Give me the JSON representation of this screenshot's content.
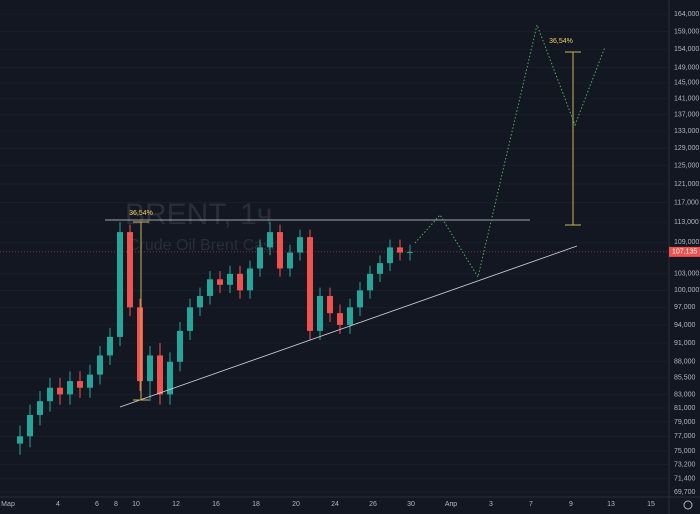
{
  "chart_data": {
    "type": "candlestick",
    "watermark_title": "BRENT, 1ч",
    "watermark_subtitle": "Crude Oil Brent Cash",
    "last_price_label": "107,135",
    "measure_label_left": "36,54%",
    "measure_label_right": "36,54%",
    "x_axis_labels": [
      "Мар",
      "4",
      "6",
      "8",
      "10",
      "12",
      "16",
      "18",
      "20",
      "24",
      "26",
      "30",
      "Апр",
      "3",
      "7",
      "9",
      "13",
      "15"
    ],
    "up_color": "#26a69a",
    "down_color": "#ef5350",
    "log_scale": true,
    "ylim": [
      68700,
      168200
    ],
    "yticks": [
      {
        "value": 164000,
        "label": "164,000"
      },
      {
        "value": 159000,
        "label": "159,000"
      },
      {
        "value": 154000,
        "label": "154,000"
      },
      {
        "value": 149000,
        "label": "149,000"
      },
      {
        "value": 145000,
        "label": "145,000"
      },
      {
        "value": 141000,
        "label": "141,000"
      },
      {
        "value": 137000,
        "label": "137,000"
      },
      {
        "value": 133000,
        "label": "133,000"
      },
      {
        "value": 129000,
        "label": "129,000"
      },
      {
        "value": 125000,
        "label": "125,000"
      },
      {
        "value": 121000,
        "label": "121,000"
      },
      {
        "value": 117000,
        "label": "117,000"
      },
      {
        "value": 113000,
        "label": "113,000"
      },
      {
        "value": 109000,
        "label": "109,000"
      },
      {
        "value": 103000,
        "label": "103,000"
      },
      {
        "value": 100000,
        "label": "100,000"
      },
      {
        "value": 97000,
        "label": "97,000"
      },
      {
        "value": 94000,
        "label": "94,000"
      },
      {
        "value": 91000,
        "label": "91,000"
      },
      {
        "value": 88000,
        "label": "88,000"
      },
      {
        "value": 85500,
        "label": "85,500"
      },
      {
        "value": 83000,
        "label": "83,000"
      },
      {
        "value": 81000,
        "label": "81,000"
      },
      {
        "value": 79000,
        "label": "79,000"
      },
      {
        "value": 77000,
        "label": "77,000"
      },
      {
        "value": 75000,
        "label": "75,000"
      },
      {
        "value": 73200,
        "label": "73,200"
      },
      {
        "value": 71400,
        "label": "71,400"
      },
      {
        "value": 69700,
        "label": "69,700"
      }
    ],
    "open": [
      76000,
      77000,
      80000,
      82000,
      84000,
      83000,
      85000,
      84000,
      86000,
      89000,
      92000,
      111000,
      97000,
      85000,
      89000,
      83000,
      88000,
      93000,
      97000,
      99000,
      102000,
      101000,
      103000,
      100000,
      104000,
      108000,
      111000,
      104000,
      107000,
      110000,
      93000,
      99000,
      96000,
      94000,
      97000,
      100000,
      103000,
      105000,
      108000,
      107000
    ],
    "high": [
      78500,
      81500,
      83500,
      85500,
      85500,
      86500,
      86500,
      87500,
      90500,
      93500,
      113000,
      112500,
      98500,
      90500,
      91000,
      89500,
      94500,
      98500,
      100500,
      103500,
      103500,
      104500,
      104500,
      105500,
      109500,
      113000,
      112500,
      108500,
      111500,
      111500,
      100500,
      100500,
      97500,
      98500,
      101500,
      104500,
      106500,
      109500,
      109500,
      108500
    ],
    "low": [
      74500,
      75500,
      78500,
      80500,
      81500,
      81500,
      82500,
      82500,
      84500,
      87500,
      90500,
      95500,
      83500,
      82000,
      81500,
      81500,
      86500,
      91500,
      95500,
      97500,
      99500,
      99500,
      98500,
      98500,
      102500,
      106500,
      102500,
      102500,
      105500,
      91500,
      91500,
      94500,
      92500,
      92500,
      95500,
      98500,
      101500,
      103500,
      105500,
      105500
    ],
    "close": [
      77000,
      80000,
      82000,
      84000,
      83000,
      85000,
      84000,
      86000,
      89000,
      92000,
      111000,
      97000,
      85000,
      89000,
      83000,
      88000,
      93000,
      97000,
      99000,
      102000,
      101000,
      103000,
      100000,
      104000,
      108000,
      111000,
      104000,
      107000,
      110000,
      93000,
      99000,
      96000,
      94000,
      97000,
      100000,
      103000,
      105000,
      108000,
      107000,
      107135
    ]
  }
}
